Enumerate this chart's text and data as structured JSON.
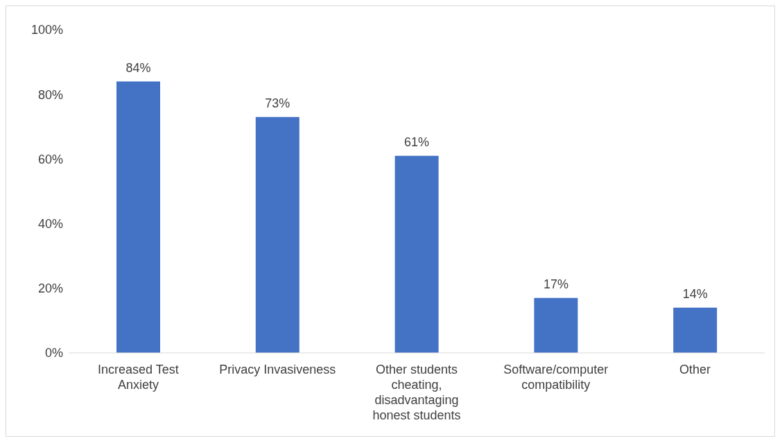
{
  "chart_data": {
    "type": "bar",
    "categories": [
      "Increased Test Anxiety",
      "Privacy Invasiveness",
      "Other students cheating, disadvantaging honest students",
      "Software/computer compatibility",
      "Other"
    ],
    "values": [
      84,
      73,
      61,
      17,
      14
    ],
    "value_labels": [
      "84%",
      "73%",
      "61%",
      "17%",
      "14%"
    ],
    "color": "#4472c4",
    "ylim": [
      0,
      100
    ],
    "yticks": [
      {
        "value": 0,
        "label": "0%"
      },
      {
        "value": 20,
        "label": "20%"
      },
      {
        "value": 40,
        "label": "40%"
      },
      {
        "value": 60,
        "label": "60%"
      },
      {
        "value": 80,
        "label": "80%"
      },
      {
        "value": 100,
        "label": "100%"
      }
    ],
    "grid": false,
    "legend": false
  }
}
